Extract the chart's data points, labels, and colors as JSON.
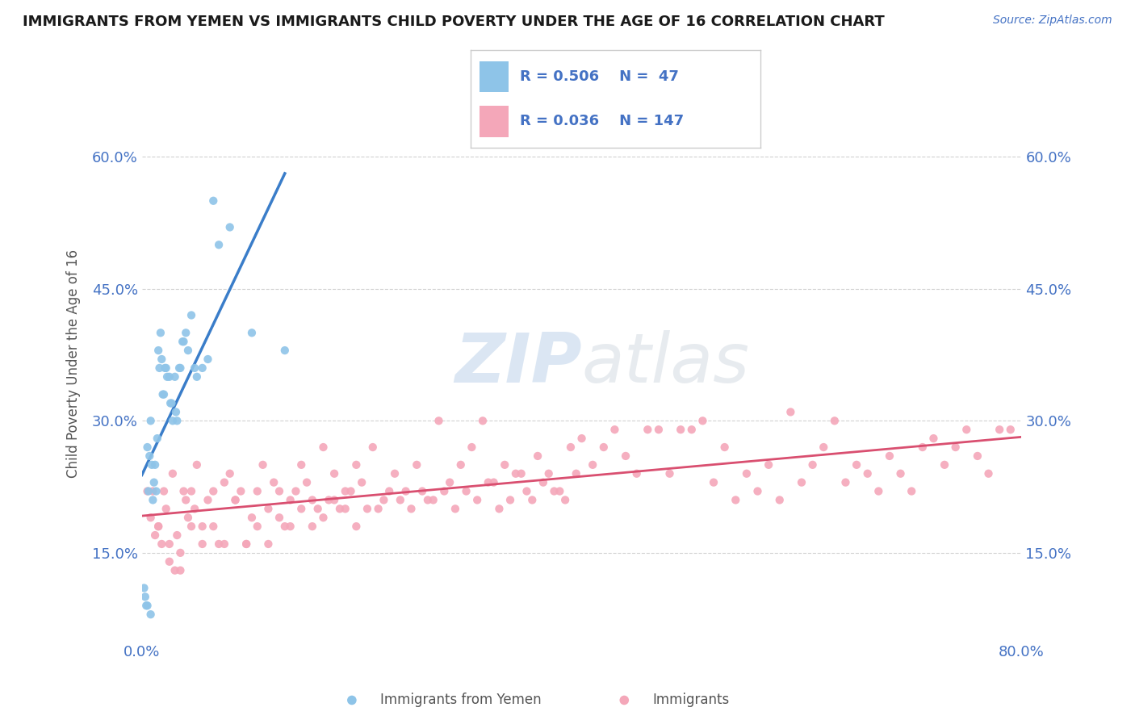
{
  "title": "IMMIGRANTS FROM YEMEN VS IMMIGRANTS CHILD POVERTY UNDER THE AGE OF 16 CORRELATION CHART",
  "source": "Source: ZipAtlas.com",
  "ylabel": "Child Poverty Under the Age of 16",
  "xlim": [
    0.0,
    0.8
  ],
  "ylim": [
    0.05,
    0.68
  ],
  "xticks": [
    0.0,
    0.2,
    0.4,
    0.6,
    0.8
  ],
  "xtick_labels": [
    "0.0%",
    "",
    "",
    "",
    "80.0%"
  ],
  "yticks": [
    0.15,
    0.3,
    0.45,
    0.6
  ],
  "ytick_labels": [
    "15.0%",
    "30.0%",
    "45.0%",
    "60.0%"
  ],
  "blue_color": "#8ec4e8",
  "pink_color": "#f4a7b9",
  "blue_line_color": "#3a7dc9",
  "pink_line_color": "#d94f70",
  "blue_scatter_x": [
    0.002,
    0.003,
    0.004,
    0.005,
    0.005,
    0.006,
    0.007,
    0.008,
    0.008,
    0.009,
    0.01,
    0.011,
    0.012,
    0.013,
    0.014,
    0.015,
    0.016,
    0.017,
    0.018,
    0.019,
    0.02,
    0.021,
    0.022,
    0.023,
    0.025,
    0.026,
    0.027,
    0.028,
    0.03,
    0.031,
    0.032,
    0.034,
    0.035,
    0.037,
    0.038,
    0.04,
    0.042,
    0.045,
    0.048,
    0.05,
    0.055,
    0.06,
    0.065,
    0.07,
    0.08,
    0.1,
    0.13
  ],
  "blue_scatter_y": [
    0.11,
    0.1,
    0.09,
    0.27,
    0.09,
    0.22,
    0.26,
    0.3,
    0.08,
    0.25,
    0.21,
    0.23,
    0.25,
    0.22,
    0.28,
    0.38,
    0.36,
    0.4,
    0.37,
    0.33,
    0.33,
    0.36,
    0.36,
    0.35,
    0.35,
    0.32,
    0.32,
    0.3,
    0.35,
    0.31,
    0.3,
    0.36,
    0.36,
    0.39,
    0.39,
    0.4,
    0.38,
    0.42,
    0.36,
    0.35,
    0.36,
    0.37,
    0.55,
    0.5,
    0.52,
    0.4,
    0.38
  ],
  "pink_scatter_x": [
    0.005,
    0.008,
    0.01,
    0.012,
    0.015,
    0.018,
    0.02,
    0.022,
    0.025,
    0.028,
    0.03,
    0.032,
    0.035,
    0.038,
    0.04,
    0.042,
    0.045,
    0.048,
    0.05,
    0.055,
    0.06,
    0.065,
    0.07,
    0.075,
    0.08,
    0.085,
    0.09,
    0.095,
    0.1,
    0.105,
    0.11,
    0.115,
    0.12,
    0.125,
    0.13,
    0.135,
    0.14,
    0.145,
    0.15,
    0.155,
    0.16,
    0.165,
    0.17,
    0.175,
    0.18,
    0.185,
    0.19,
    0.195,
    0.2,
    0.21,
    0.22,
    0.23,
    0.24,
    0.25,
    0.26,
    0.27,
    0.28,
    0.29,
    0.3,
    0.31,
    0.32,
    0.33,
    0.34,
    0.35,
    0.36,
    0.37,
    0.38,
    0.39,
    0.4,
    0.41,
    0.42,
    0.43,
    0.44,
    0.45,
    0.46,
    0.47,
    0.48,
    0.49,
    0.5,
    0.51,
    0.52,
    0.53,
    0.54,
    0.55,
    0.56,
    0.57,
    0.58,
    0.59,
    0.6,
    0.61,
    0.62,
    0.63,
    0.64,
    0.65,
    0.66,
    0.67,
    0.68,
    0.69,
    0.7,
    0.71,
    0.72,
    0.73,
    0.74,
    0.75,
    0.76,
    0.77,
    0.78,
    0.79,
    0.015,
    0.025,
    0.035,
    0.045,
    0.055,
    0.065,
    0.075,
    0.085,
    0.095,
    0.105,
    0.115,
    0.125,
    0.135,
    0.145,
    0.155,
    0.165,
    0.175,
    0.185,
    0.195,
    0.205,
    0.215,
    0.225,
    0.235,
    0.245,
    0.255,
    0.265,
    0.275,
    0.285,
    0.295,
    0.305,
    0.315,
    0.325,
    0.335,
    0.345,
    0.355,
    0.365,
    0.375,
    0.385,
    0.395
  ],
  "pink_scatter_y": [
    0.22,
    0.19,
    0.22,
    0.17,
    0.18,
    0.16,
    0.22,
    0.2,
    0.14,
    0.24,
    0.13,
    0.17,
    0.13,
    0.22,
    0.21,
    0.19,
    0.22,
    0.2,
    0.25,
    0.18,
    0.21,
    0.22,
    0.16,
    0.23,
    0.24,
    0.21,
    0.22,
    0.16,
    0.19,
    0.22,
    0.25,
    0.2,
    0.23,
    0.22,
    0.18,
    0.21,
    0.22,
    0.25,
    0.23,
    0.21,
    0.2,
    0.27,
    0.21,
    0.24,
    0.2,
    0.22,
    0.22,
    0.25,
    0.23,
    0.27,
    0.21,
    0.24,
    0.22,
    0.25,
    0.21,
    0.3,
    0.23,
    0.25,
    0.27,
    0.3,
    0.23,
    0.25,
    0.24,
    0.22,
    0.26,
    0.24,
    0.22,
    0.27,
    0.28,
    0.25,
    0.27,
    0.29,
    0.26,
    0.24,
    0.29,
    0.29,
    0.24,
    0.29,
    0.29,
    0.3,
    0.23,
    0.27,
    0.21,
    0.24,
    0.22,
    0.25,
    0.21,
    0.31,
    0.23,
    0.25,
    0.27,
    0.3,
    0.23,
    0.25,
    0.24,
    0.22,
    0.26,
    0.24,
    0.22,
    0.27,
    0.28,
    0.25,
    0.27,
    0.29,
    0.26,
    0.24,
    0.29,
    0.29,
    0.18,
    0.16,
    0.15,
    0.18,
    0.16,
    0.18,
    0.16,
    0.21,
    0.16,
    0.18,
    0.16,
    0.19,
    0.18,
    0.2,
    0.18,
    0.19,
    0.21,
    0.2,
    0.18,
    0.2,
    0.2,
    0.22,
    0.21,
    0.2,
    0.22,
    0.21,
    0.22,
    0.2,
    0.22,
    0.21,
    0.23,
    0.2,
    0.21,
    0.24,
    0.21,
    0.23,
    0.22,
    0.21,
    0.24
  ]
}
